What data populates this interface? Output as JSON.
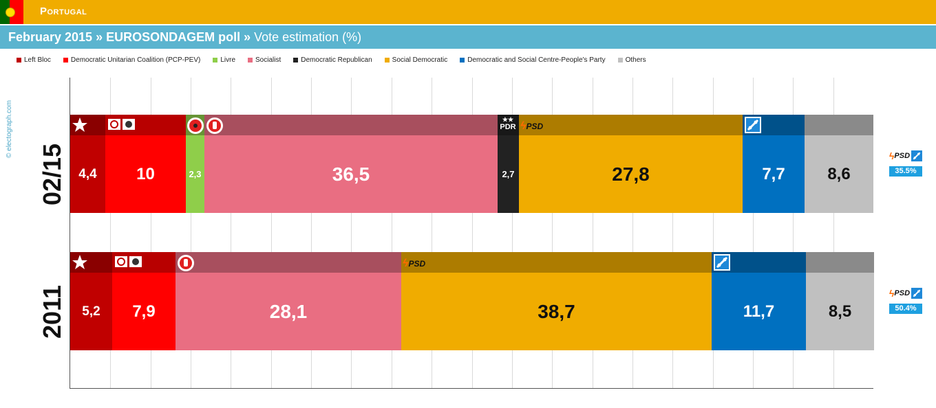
{
  "header": {
    "country": "Portugal",
    "title_bold": "February 2015 » EUROSONDAGEM poll »",
    "title_rest": " Vote estimation (%)"
  },
  "watermark": "© electograph.com",
  "colors": {
    "top_bar": "#f0ac00",
    "title_bar": "#5bb4cf",
    "coalition_badge": "#1ea0e0"
  },
  "legend": [
    {
      "label": "Left Bloc",
      "color": "#c00000"
    },
    {
      "label": "Democratic Unitarian Coalition (PCP-PEV)",
      "color": "#ff0000"
    },
    {
      "label": "Livre",
      "color": "#8fce4a"
    },
    {
      "label": "Socialist",
      "color": "#e96e82"
    },
    {
      "label": "Democratic Republican",
      "color": "#222222"
    },
    {
      "label": "Social Democratic",
      "color": "#f0ac00"
    },
    {
      "label": "Democratic and Social Centre-People's Party",
      "color": "#0070c0"
    },
    {
      "label": "Others",
      "color": "#c0c0c0"
    }
  ],
  "logos": {
    "psd": "PSD",
    "pdr": "PDR"
  },
  "chart_data": {
    "type": "bar",
    "stacked": true,
    "orientation": "horizontal",
    "categories": [
      "02/15",
      "2011"
    ],
    "xlim": [
      0,
      100
    ],
    "grid": true,
    "series": [
      {
        "name": "Left Bloc",
        "color": "#c00000",
        "values": [
          4.4,
          5.2
        ],
        "labels": [
          "4,4",
          "5,2"
        ]
      },
      {
        "name": "Democratic Unitarian Coalition (PCP-PEV)",
        "color": "#ff0000",
        "values": [
          10,
          7.9
        ],
        "labels": [
          "10",
          "7,9"
        ]
      },
      {
        "name": "Livre",
        "color": "#8fce4a",
        "values": [
          2.3,
          0
        ],
        "labels": [
          "2,3",
          ""
        ]
      },
      {
        "name": "Socialist",
        "color": "#e96e82",
        "values": [
          36.5,
          28.1
        ],
        "labels": [
          "36,5",
          "28,1"
        ]
      },
      {
        "name": "Democratic Republican",
        "color": "#222222",
        "values": [
          2.7,
          0
        ],
        "labels": [
          "2,7",
          ""
        ]
      },
      {
        "name": "Social Democratic",
        "color": "#f0ac00",
        "values": [
          27.8,
          38.7
        ],
        "labels": [
          "27,8",
          "38,7"
        ]
      },
      {
        "name": "Democratic and Social Centre-People's Party",
        "color": "#0070c0",
        "values": [
          7.7,
          11.7
        ],
        "labels": [
          "7,7",
          "11,7"
        ]
      },
      {
        "name": "Others",
        "color": "#c0c0c0",
        "values": [
          8.6,
          8.5
        ],
        "labels": [
          "8,6",
          "8,5"
        ]
      }
    ],
    "coalition_totals": [
      "35.5%",
      "50.4%"
    ]
  }
}
